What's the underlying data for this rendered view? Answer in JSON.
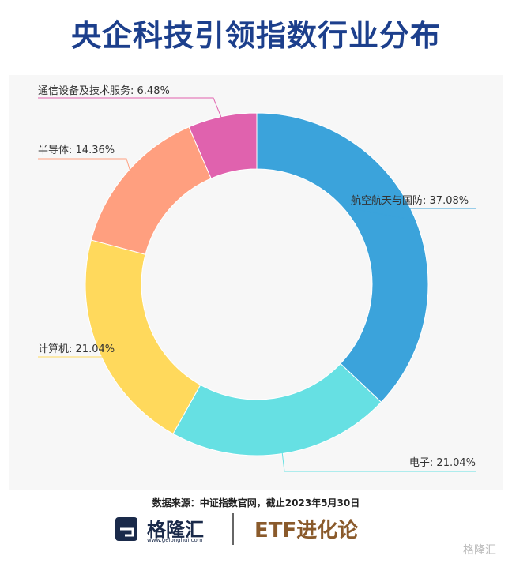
{
  "chart_data": {
    "type": "donut",
    "title": "央企科技引领指数行业分布",
    "categories": [
      "航空航天与国防",
      "电子",
      "计算机",
      "半导体",
      "通信设备及技术服务"
    ],
    "values": [
      37.08,
      21.04,
      21.04,
      14.36,
      6.48
    ],
    "value_labels": [
      "37.08%",
      "21.04%",
      "21.04%",
      "14.36%",
      "6.48%"
    ],
    "colors": [
      "#3ba3db",
      "#66e0e3",
      "#ffd95c",
      "#ff9f7f",
      "#e062ae"
    ]
  },
  "footer": {
    "source": "数据来源：中证指数官网，截止2023年5月30日",
    "logo": "格隆汇",
    "logo_url": "www.gelonghui.com",
    "brand": "ETF进化论",
    "watermark": "格隆汇"
  }
}
